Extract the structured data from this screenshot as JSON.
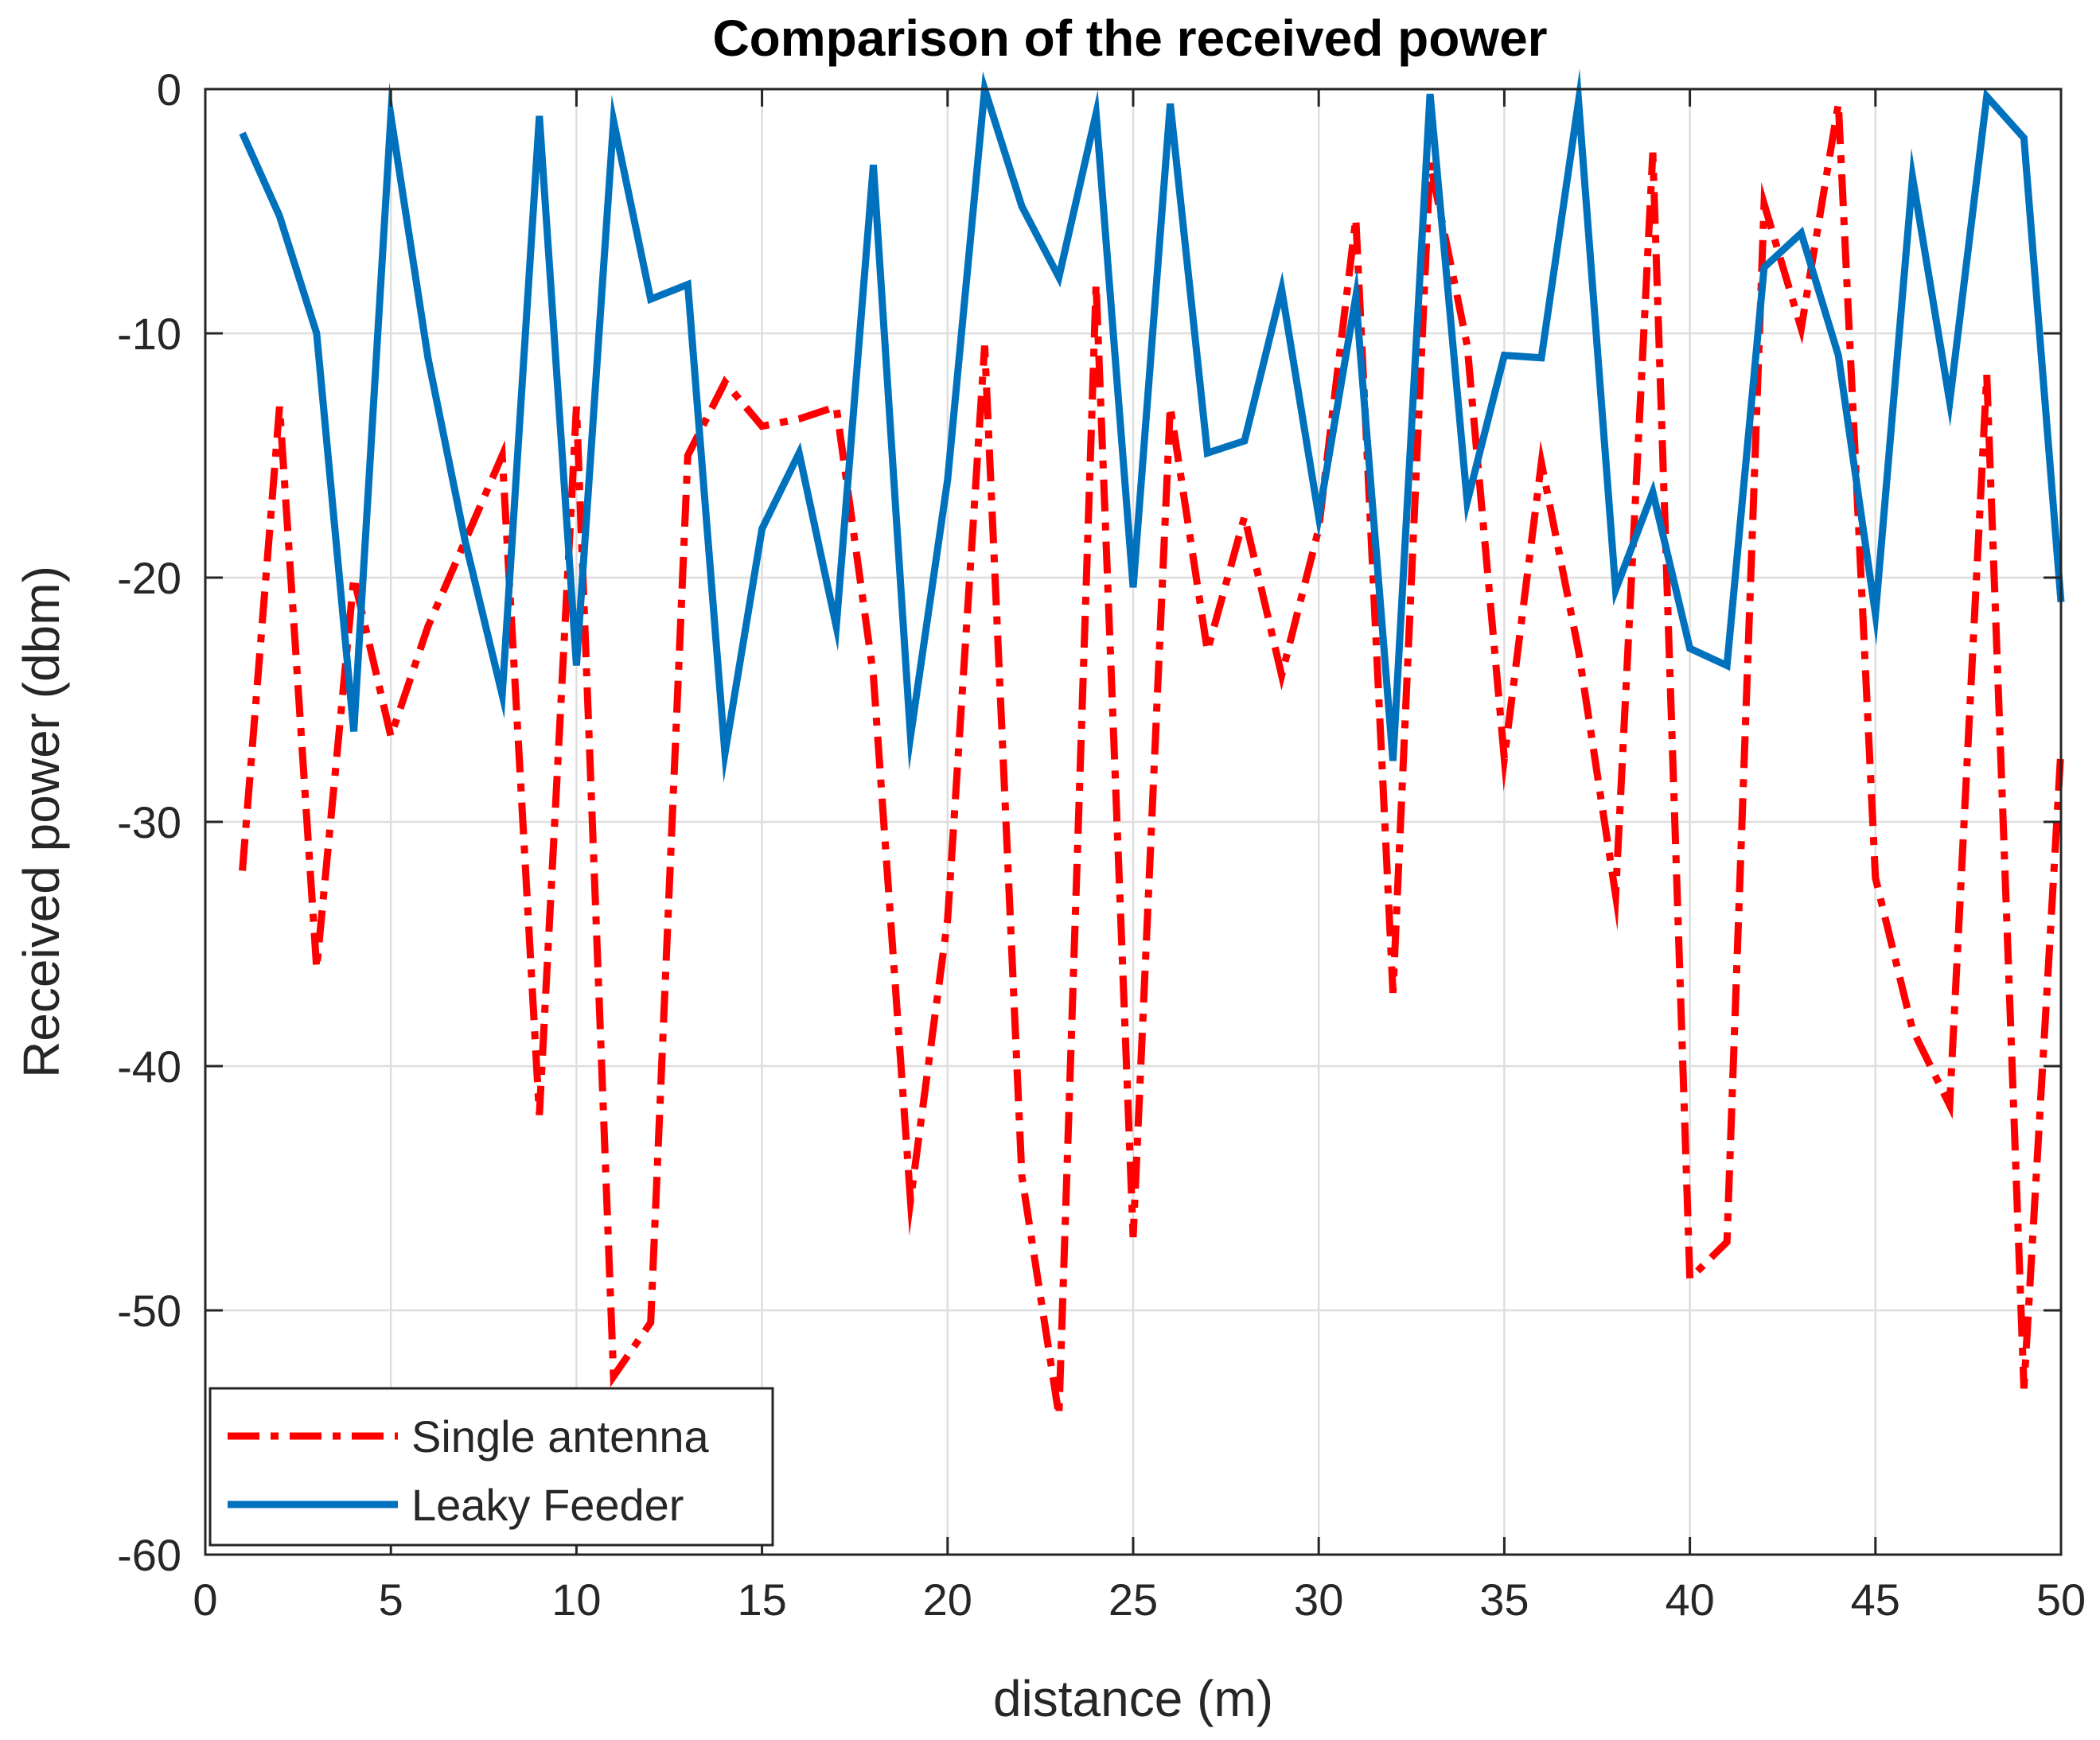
{
  "chart_data": {
    "type": "line",
    "title": "Comparison of the received power",
    "xlabel": "distance  (m)",
    "ylabel": "Received power  (dbm)",
    "xlim": [
      0,
      50
    ],
    "ylim": [
      -60,
      0
    ],
    "xticks": [
      0,
      5,
      10,
      15,
      20,
      25,
      30,
      35,
      40,
      45,
      50
    ],
    "yticks": [
      -60,
      -50,
      -40,
      -30,
      -20,
      -10,
      0
    ],
    "grid": true,
    "legend_location": "bottom-left",
    "series": [
      {
        "name": "Single antenna",
        "color": "#ff0000",
        "style": "dash-dot",
        "x": [
          1,
          2,
          3,
          4,
          5,
          6,
          7,
          8,
          9,
          10,
          11,
          12,
          13,
          14,
          15,
          16,
          17,
          18,
          19,
          20,
          21,
          22,
          23,
          24,
          25,
          26,
          27,
          28,
          29,
          30,
          31,
          32,
          33,
          34,
          35,
          36,
          37,
          38,
          39,
          40,
          41,
          42,
          43,
          44,
          45,
          46,
          47,
          48,
          49,
          50
        ],
        "y": [
          -32,
          -13,
          -36,
          -20,
          -26.5,
          -22,
          -18.5,
          -15,
          -42,
          -13,
          -52.7,
          -50.5,
          -15,
          -12,
          -13.8,
          -13.5,
          -13,
          -24,
          -45.5,
          -34,
          -10.5,
          -44.5,
          -54.3,
          -8,
          -47,
          -13,
          -23,
          -17.5,
          -24,
          -18,
          -5.3,
          -37,
          -3,
          -10.5,
          -27.4,
          -15.3,
          -23,
          -33,
          -2.6,
          -48.7,
          -47.2,
          -4.7,
          -9.8,
          -0.6,
          -32.3,
          -38.5,
          -41.6,
          -11.7,
          -53.2,
          -27
        ]
      },
      {
        "name": "Leaky Feeder",
        "color": "#0072bd",
        "style": "solid",
        "x": [
          1,
          2,
          3,
          4,
          5,
          6,
          7,
          8,
          9,
          10,
          11,
          12,
          13,
          14,
          15,
          16,
          17,
          18,
          19,
          20,
          21,
          22,
          23,
          24,
          25,
          26,
          27,
          28,
          29,
          30,
          31,
          32,
          33,
          34,
          35,
          36,
          37,
          38,
          39,
          40,
          41,
          42,
          43,
          44,
          45,
          46,
          47,
          48,
          49,
          50
        ],
        "y": [
          -1.8,
          -5.2,
          -10,
          -26.3,
          -1.1,
          -11,
          -18.5,
          -24.8,
          -1.1,
          -23.6,
          -1.3,
          -8.6,
          -8,
          -27.2,
          -18,
          -14.9,
          -22,
          -3.1,
          -26.5,
          -16,
          0,
          -4.8,
          -7.7,
          -1,
          -20.4,
          -0.6,
          -14.9,
          -14.4,
          -8.2,
          -17.5,
          -8.5,
          -27.5,
          -0.2,
          -16.9,
          -10.9,
          -11,
          -0.5,
          -20.5,
          -16.5,
          -22.9,
          -23.6,
          -7.3,
          -5.9,
          -10.9,
          -21.5,
          -3.6,
          -12.8,
          -0.3,
          -2,
          -21
        ]
      }
    ]
  }
}
